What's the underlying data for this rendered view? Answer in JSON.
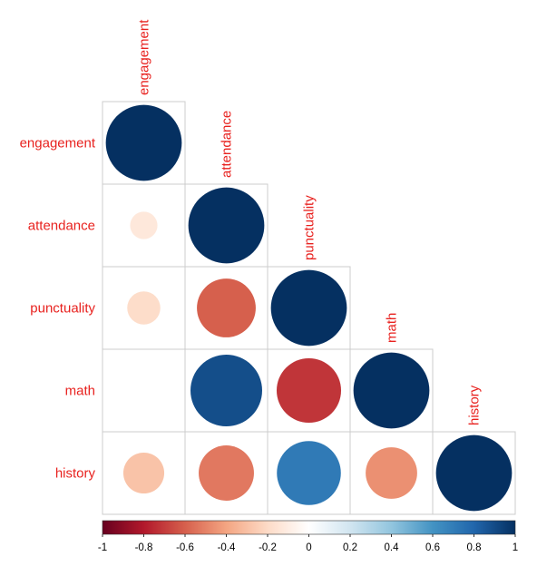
{
  "chart_data": {
    "type": "heatmap",
    "variables": [
      "engagement",
      "attendance",
      "punctuality",
      "math",
      "history"
    ],
    "matrix": [
      [
        1.0,
        0.0,
        0.0,
        0.0,
        0.0
      ],
      [
        -0.13,
        1.0,
        0.0,
        0.0,
        0.0
      ],
      [
        -0.19,
        -0.6,
        1.0,
        0.0,
        0.0
      ],
      [
        0.0,
        0.89,
        -0.72,
        1.0,
        0.0
      ],
      [
        -0.29,
        -0.53,
        0.71,
        -0.46,
        1.0
      ]
    ],
    "colorbar": {
      "min": -1,
      "max": 1,
      "ticks": [
        -1,
        -0.8,
        -0.6,
        -0.4,
        -0.2,
        0,
        0.2,
        0.4,
        0.6,
        0.8,
        1
      ],
      "tick_labels": [
        "-1",
        "-0.8",
        "-0.6",
        "-0.4",
        "-0.2",
        "0",
        "0.2",
        "0.4",
        "0.6",
        "0.8",
        "1"
      ],
      "placement": "bottom"
    },
    "label_color": "#e8221f",
    "colors": [
      "#67001f",
      "#b2182b",
      "#d6604d",
      "#f4a582",
      "#fddbc7",
      "#ffffff",
      "#d1e5f0",
      "#92c5de",
      "#4393c3",
      "#2166ac",
      "#053061"
    ]
  }
}
